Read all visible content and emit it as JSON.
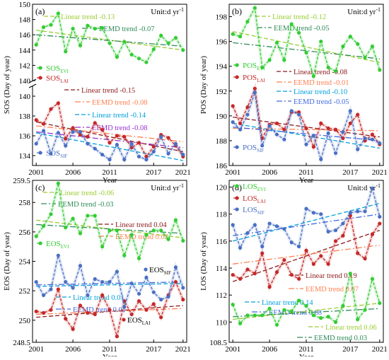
{
  "chart_data": [
    {
      "id": "a",
      "type": "line",
      "panel_label": "(a)",
      "unit_prefix": "Unit:d yr",
      "unit_exp": "-1",
      "ylabel": "SOS (Day of year)",
      "xlabel": "Year",
      "xlim": [
        2000.5,
        2021.5
      ],
      "xticks": [
        2001,
        2006,
        2011,
        2017,
        2021
      ],
      "broken_axis": true,
      "upper": {
        "ylim": [
          140,
          150
        ],
        "yticks": [
          140,
          142,
          144,
          146,
          148,
          150
        ],
        "series": [
          {
            "base": "SOS",
            "sub": "EVI",
            "color": "#33cc33",
            "marker": "circle",
            "values": [
              144.7,
              147.0,
              147.3,
              148.8,
              143.8,
              146.8,
              144.6,
              147.2,
              146.8,
              146.9,
              144.9,
              143.1,
              145.1,
              143.4,
              142.9,
              142.4,
              144.1,
              145.9,
              144.9,
              145.6,
              144.0
            ]
          }
        ],
        "trends": [
          {
            "label": "Linear trend -0.13",
            "color": "#9acd32",
            "dash": "6,3",
            "start": 146.6,
            "end": 144.0
          },
          {
            "label": "EEMD trend -0.07",
            "color": "#2e8b57",
            "dash": "8,3,2,3",
            "start": 146.0,
            "end": 144.5
          }
        ]
      },
      "lower": {
        "ylim": [
          133,
          141
        ],
        "yticks": [
          134,
          136,
          138,
          140
        ],
        "series": [
          {
            "base": "SOS",
            "sub": "LAI",
            "color": "#c62828",
            "marker": "circle",
            "values": [
              137.6,
              137.2,
              138.7,
              139.3,
              135.7,
              136.8,
              136.1,
              135.9,
              137.3,
              136.6,
              135.3,
              136.0,
              135.9,
              134.8,
              135.3,
              133.9,
              134.9,
              136.1,
              135.8,
              135.0,
              133.9
            ]
          },
          {
            "base": "SOS",
            "sub": "SIF",
            "color": "#4a6fc4",
            "marker": "circle",
            "values": [
              135.2,
              136.5,
              134.2,
              136.3,
              135.0,
              136.4,
              136.4,
              135.2,
              134.7,
              134.1,
              133.6,
              135.1,
              133.6,
              135.2,
              133.9,
              133.6,
              134.4,
              135.9,
              134.2,
              135.2,
              134.1
            ]
          }
        ],
        "trends": [
          {
            "label": "Linear trend -0.15",
            "color": "#8b1a1a",
            "dash": "6,3",
            "start": 137.4,
            "end": 134.4
          },
          {
            "label": "EEMD trend -0.08",
            "color": "#ff7f50",
            "dash": "8,3,2,3",
            "start": 137.0,
            "end": 135.4
          },
          {
            "label": "Linear trend -0.14",
            "color": "#00a0dc",
            "dash": "6,3",
            "start": 136.3,
            "end": 133.5
          },
          {
            "label": "EEMD trend -0.08",
            "color": "#9932cc",
            "dash": "8,3,2,3",
            "start": 136.4,
            "end": 134.8
          }
        ]
      }
    },
    {
      "id": "b",
      "type": "line",
      "panel_label": "(b)",
      "unit_prefix": "Unit:d yr",
      "unit_exp": "-1",
      "ylabel": "POS (Day of year)",
      "xlabel": "Year",
      "xlim": [
        2000.5,
        2021.5
      ],
      "xticks": [
        2001,
        2006,
        2011,
        2017,
        2021
      ],
      "ylim": [
        186,
        199
      ],
      "yticks": [
        186,
        188,
        190,
        192,
        194,
        196,
        198
      ],
      "series": [
        {
          "base": "POS",
          "sub": "EVI",
          "color": "#33cc33",
          "marker": "circle",
          "values": [
            196.6,
            196.4,
            197.6,
            198.7,
            193.9,
            194.5,
            195.9,
            194.5,
            197.4,
            196.7,
            195.1,
            193.2,
            196.0,
            193.9,
            193.6,
            195.6,
            196.4,
            195.8,
            194.7,
            195.6,
            193.7
          ]
        },
        {
          "base": "POS",
          "sub": "LAI",
          "color": "#c62828",
          "marker": "circle",
          "values": [
            190.8,
            189.4,
            190.7,
            192.2,
            188.2,
            189.3,
            189.4,
            188.9,
            190.3,
            190.3,
            189.0,
            187.5,
            189.4,
            189.0,
            188.9,
            188.2,
            189.4,
            190.1,
            188.0,
            188.5,
            187.7
          ]
        },
        {
          "base": "POS",
          "sub": "SIF",
          "color": "#4a6fc4",
          "marker": "circle",
          "values": [
            189.5,
            188.9,
            190.1,
            191.9,
            187.6,
            189.2,
            188.5,
            188.1,
            190.4,
            190.1,
            187.7,
            188.4,
            186.5,
            188.6,
            187.0,
            188.7,
            190.4,
            187.3,
            188.2,
            188.1,
            187.8
          ]
        }
      ],
      "trends": [
        {
          "label": "Linear trend -0.12",
          "color": "#9acd32",
          "dash": "6,3",
          "start": 196.8,
          "end": 194.3
        },
        {
          "label": "EEMD trend -0.05",
          "color": "#2e8b57",
          "dash": "8,3,2,3",
          "start": 195.9,
          "end": 194.6
        },
        {
          "label": "Linear trend -0.08",
          "color": "#8b1a1a",
          "dash": "6,3",
          "start": 189.9,
          "end": 188.3
        },
        {
          "label": "EEMD trend -0.01",
          "color": "#ff7f50",
          "dash": "8,3,2,3",
          "start": 189.0,
          "end": 188.8
        },
        {
          "label": "Linear trend -0.10",
          "color": "#00a0dc",
          "dash": "6,3",
          "start": 189.4,
          "end": 187.4
        },
        {
          "label": "EEMD trend -0.05",
          "color": "#4169e1",
          "dash": "8,3,2,3",
          "start": 189.1,
          "end": 188.0
        }
      ]
    },
    {
      "id": "c",
      "type": "line",
      "panel_label": "(c)",
      "unit_prefix": "Unit:d yr",
      "unit_exp": "-1",
      "ylabel": "EOS (Day of year)",
      "xlabel": "Year",
      "xlim": [
        2000.5,
        2021.5
      ],
      "xticks": [
        2001,
        2006,
        2011,
        2017,
        2021
      ],
      "ylim": [
        248.5,
        259.5
      ],
      "yticks": [
        248.5,
        250,
        252,
        254,
        256,
        258,
        259.5
      ],
      "ytick_labels": [
        "248.5",
        "250",
        "252",
        "254",
        "256",
        "258",
        "259.5"
      ],
      "series": [
        {
          "base": "EOS",
          "sub": "EVI",
          "color": "#33cc33",
          "marker": "circle",
          "values": [
            255.7,
            256.4,
            257.2,
            259.3,
            256.3,
            256.9,
            255.9,
            257.1,
            257.1,
            255.0,
            256.1,
            256.1,
            254.4,
            255.8,
            254.2,
            255.8,
            256.1,
            256.1,
            255.5,
            256.8,
            255.4
          ]
        },
        {
          "base": "EOS",
          "sub": "LAI",
          "color": "#c62828",
          "marker": "circle",
          "values": [
            250.6,
            250.5,
            250.7,
            252.1,
            250.1,
            249.4,
            251.0,
            250.5,
            250.4,
            251.7,
            250.7,
            248.9,
            251.3,
            250.4,
            251.3,
            250.7,
            251.1,
            250.2,
            251.7,
            252.6,
            251.4
          ]
        },
        {
          "base": "EOS",
          "sub": "SIF",
          "color": "#4a6fc4",
          "marker": "circle",
          "values": [
            252.6,
            251.7,
            252.1,
            254.4,
            252.6,
            252.2,
            253.7,
            251.7,
            252.8,
            252.6,
            252.6,
            253.3,
            250.9,
            252.5,
            251.8,
            252.9,
            251.9,
            251.4,
            251.6,
            253.6,
            252.2
          ]
        }
      ],
      "trends": [
        {
          "label": "Linear trend -0.06",
          "color": "#9acd32",
          "dash": "6,3",
          "start": 256.8,
          "end": 255.6
        },
        {
          "label": "EEMD trend -0.03",
          "color": "#2e8b57",
          "dash": "8,3,2,3",
          "start": 256.5,
          "end": 255.9
        },
        {
          "label": "Linear trend 0.04",
          "color": "#8b1a1a",
          "dash": "6,3",
          "start": 250.2,
          "end": 251.0
        },
        {
          "label": "EEMD trend 0.02",
          "color": "#ff7f50",
          "dash": "8,3,2,3",
          "start": 250.4,
          "end": 250.8
        },
        {
          "label": "Linear trend 0.01",
          "color": "#00a0dc",
          "dash": "6,3",
          "start": 252.3,
          "end": 252.5
        },
        {
          "label": "EEMD trend 0.01",
          "color": "#4169e1",
          "dash": "8,3,2,3",
          "start": 252.4,
          "end": 252.6
        }
      ]
    },
    {
      "id": "d",
      "type": "line",
      "panel_label": "(d)",
      "unit_prefix": "Unit:d yr",
      "unit_exp": "-1",
      "ylabel": "LOS (Day of year)",
      "xlabel": "Year",
      "xlim": [
        2000.5,
        2021.5
      ],
      "xticks": [
        2001,
        2006,
        2011,
        2017,
        2021
      ],
      "ylim": [
        108.5,
        120.5
      ],
      "yticks": [
        108.5,
        110,
        112,
        114,
        116,
        118,
        120
      ],
      "ytick_labels": [
        "108.5",
        "110",
        "112",
        "114",
        "116",
        "118",
        "120"
      ],
      "series": [
        {
          "base": "LOS",
          "sub": "EVI",
          "color": "#33cc33",
          "marker": "circle",
          "values": [
            111.3,
            109.9,
            110.5,
            110.5,
            110.5,
            111.0,
            109.8,
            110.9,
            110.8,
            111.6,
            111.2,
            110.5,
            110.3,
            110.4,
            110.0,
            111.2,
            113.6,
            110.2,
            110.9,
            113.2,
            111.4
          ]
        },
        {
          "base": "LOS",
          "sub": "LAI",
          "color": "#c62828",
          "marker": "circle",
          "values": [
            113.5,
            113.2,
            113.9,
            113.6,
            115.1,
            112.6,
            113.7,
            114.6,
            113.5,
            113.2,
            115.3,
            114.3,
            114.9,
            114.3,
            116.0,
            116.4,
            117.9,
            115.1,
            114.7,
            116.5,
            117.3
          ]
        },
        {
          "base": "LOS",
          "sub": "SIF",
          "color": "#4a6fc4",
          "marker": "circle",
          "values": [
            117.2,
            115.5,
            116.6,
            117.2,
            115.6,
            117.3,
            117.1,
            116.9,
            115.9,
            115.6,
            118.4,
            118.1,
            118.0,
            116.7,
            116.8,
            117.3,
            118.1,
            118.2,
            118.2,
            119.9,
            117.8
          ]
        }
      ],
      "trends": [
        {
          "label": "Linear trend 0.19",
          "color": "#8b1a1a",
          "dash": "6,3",
          "start": 113.0,
          "end": 116.8
        },
        {
          "label": "EEMD trend 0.07",
          "color": "#ff7f50",
          "dash": "8,3,2,3",
          "start": 114.3,
          "end": 115.7
        },
        {
          "label": "Linear trend 0.14",
          "color": "#00a0dc",
          "dash": "6,3",
          "start": 116.0,
          "end": 118.8
        },
        {
          "label": "EEMD trend 0.08",
          "color": "#4169e1",
          "dash": "8,3,2,3",
          "start": 116.4,
          "end": 118.0
        },
        {
          "label": "Linear trend 0.06",
          "color": "#9acd32",
          "dash": "6,3",
          "start": 110.2,
          "end": 111.4
        },
        {
          "label": "EEMD trend 0.03",
          "color": "#2e8b57",
          "dash": "8,3,2,3",
          "start": 110.4,
          "end": 111.0
        }
      ]
    }
  ]
}
